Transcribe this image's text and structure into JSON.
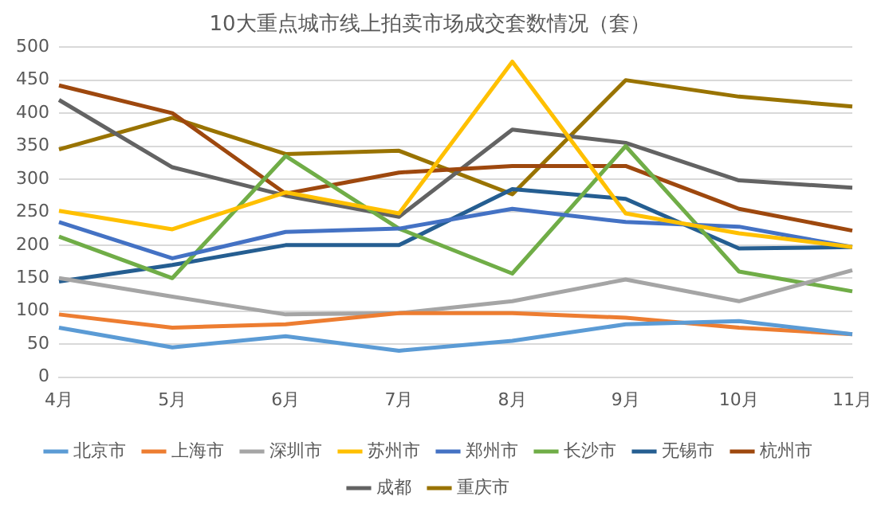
{
  "chart_data": {
    "type": "line",
    "title": "10大重点城市线上拍卖市场成交套数情况（套）",
    "categories": [
      "4月",
      "5月",
      "6月",
      "7月",
      "8月",
      "9月",
      "10月",
      "11月"
    ],
    "series": [
      {
        "name": "北京市",
        "color": "#5b9bd5",
        "values": [
          75,
          45,
          62,
          40,
          55,
          80,
          85,
          65
        ]
      },
      {
        "name": "上海市",
        "color": "#ed7d31",
        "values": [
          95,
          75,
          80,
          97,
          97,
          90,
          75,
          65
        ]
      },
      {
        "name": "深圳市",
        "color": "#a5a5a5",
        "values": [
          150,
          122,
          95,
          97,
          115,
          148,
          115,
          162
        ]
      },
      {
        "name": "苏州市",
        "color": "#ffc000",
        "values": [
          252,
          224,
          280,
          248,
          478,
          248,
          218,
          197
        ]
      },
      {
        "name": "郑州市",
        "color": "#4472c4",
        "values": [
          235,
          180,
          220,
          225,
          255,
          235,
          228,
          197
        ]
      },
      {
        "name": "长沙市",
        "color": "#70ad47",
        "values": [
          213,
          150,
          335,
          225,
          157,
          350,
          160,
          130
        ]
      },
      {
        "name": "无锡市",
        "color": "#255e91",
        "values": [
          145,
          170,
          200,
          200,
          285,
          270,
          195,
          197
        ]
      },
      {
        "name": "杭州市",
        "color": "#9e480e",
        "values": [
          442,
          400,
          278,
          310,
          320,
          320,
          255,
          222
        ]
      },
      {
        "name": "成都",
        "color": "#636363",
        "values": [
          420,
          318,
          275,
          243,
          375,
          355,
          298,
          287
        ]
      },
      {
        "name": "重庆市",
        "color": "#997300",
        "values": [
          345,
          393,
          338,
          343,
          277,
          450,
          425,
          410
        ]
      }
    ],
    "ylim": [
      0,
      500
    ],
    "yticks": [
      0,
      50,
      100,
      150,
      200,
      250,
      300,
      350,
      400,
      450,
      500
    ],
    "grid": "y",
    "legend": "bottom",
    "marker": "none",
    "line_style": "solid"
  }
}
